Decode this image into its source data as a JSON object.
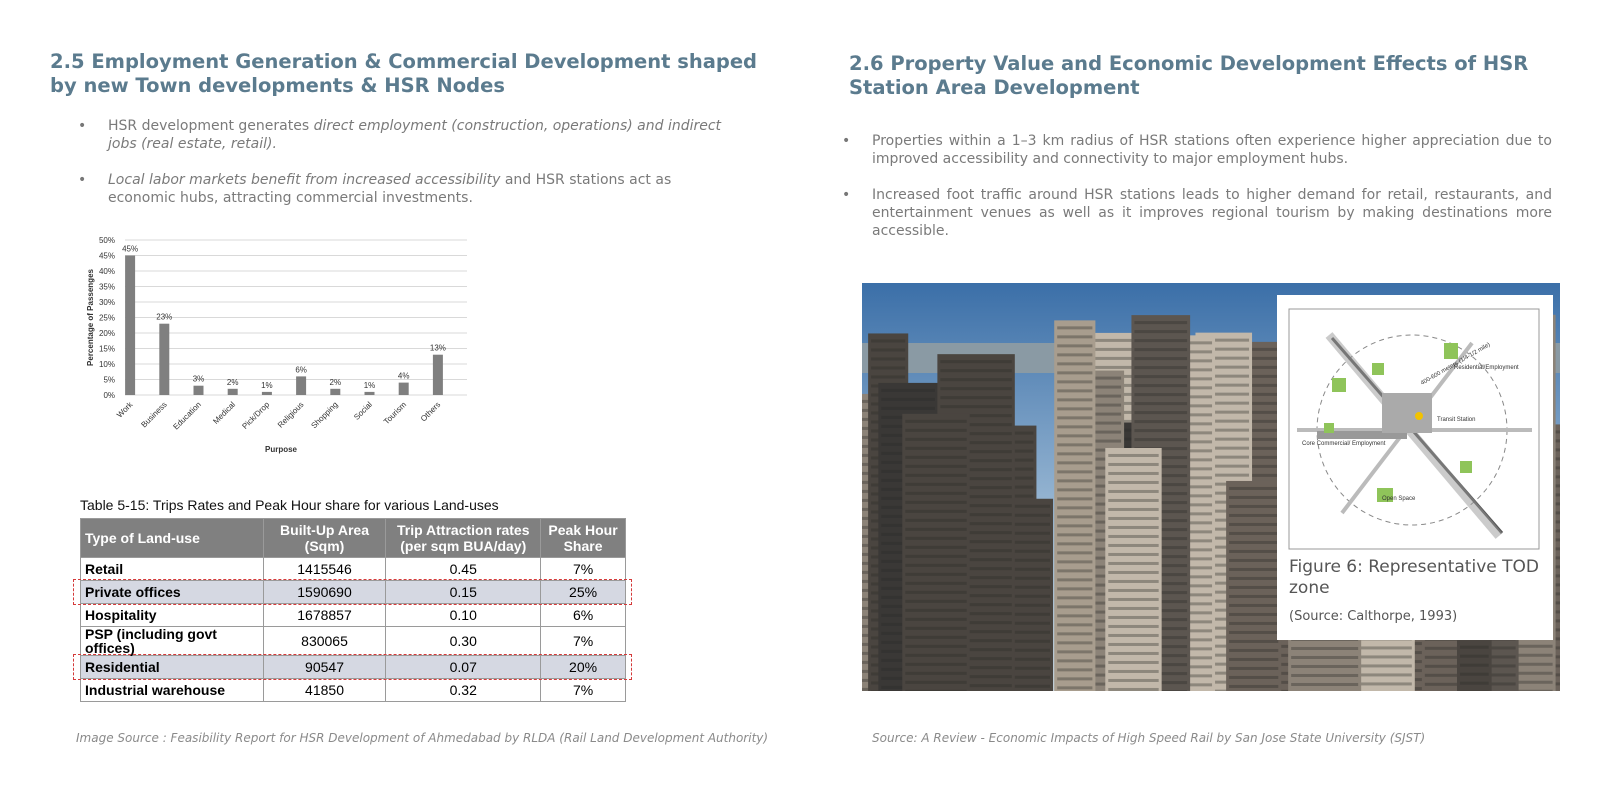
{
  "left": {
    "title": "2.5 Employment Generation & Commercial Development shaped by new Town developments & HSR Nodes",
    "bullets": [
      [
        {
          "text": "HSR development generates "
        },
        {
          "text": "direct employment (construction, operations) and indirect jobs (real estate, retail).",
          "italic": true
        }
      ],
      [
        {
          "text": "Local labor markets benefit from increased accessibility",
          "italic": true
        },
        {
          "text": " and HSR stations act as economic hubs, attracting commercial investments."
        }
      ]
    ],
    "chart": {
      "type": "bar",
      "categories": [
        "Work",
        "Business",
        "Education",
        "Medical",
        "Pick/Drop",
        "Religious",
        "Shopping",
        "Social",
        "Tourism",
        "Others"
      ],
      "values": [
        45,
        23,
        3,
        2,
        1,
        6,
        2,
        1,
        4,
        13
      ],
      "value_labels": [
        "45%",
        "23%",
        "3%",
        "2%",
        "1%",
        "6%",
        "2%",
        "1%",
        "4%",
        "13%"
      ],
      "color": "#7f7f7f",
      "ylim": [
        0,
        50
      ],
      "yticks": [
        {
          "value": 0,
          "label": "0%"
        },
        {
          "value": 5,
          "label": "5%"
        },
        {
          "value": 10,
          "label": "10%"
        },
        {
          "value": 15,
          "label": "15%"
        },
        {
          "value": 20,
          "label": "20%"
        },
        {
          "value": 25,
          "label": "25%"
        },
        {
          "value": 30,
          "label": "30%"
        },
        {
          "value": 35,
          "label": "35%"
        },
        {
          "value": 40,
          "label": "40%"
        },
        {
          "value": 45,
          "label": "45%"
        },
        {
          "value": 50,
          "label": "50%"
        }
      ],
      "grid": true,
      "ylabel": "Percentage of Passenges",
      "xlabel": "Purpose"
    },
    "table": {
      "caption": "Table 5-15: Trips Rates and Peak Hour share for various Land-uses",
      "header": [
        "Type of Land-use",
        "Built-Up Area (Sqm)",
        "Trip Attraction rates (per sqm BUA/day)",
        "Peak Hour Share"
      ],
      "rows": [
        {
          "cells": [
            "Retail",
            "1415546",
            "0.45",
            "7%"
          ]
        },
        {
          "cells": [
            "Private offices",
            "1590690",
            "0.15",
            "25%"
          ],
          "highlighted": true
        },
        {
          "cells": [
            "Hospitality",
            "1678857",
            "0.10",
            "6%"
          ]
        },
        {
          "cells": [
            "PSP (including govt offices)",
            "830065",
            "0.30",
            "7%"
          ]
        },
        {
          "cells": [
            "Residential",
            "90547",
            "0.07",
            "20%"
          ],
          "highlighted": true
        },
        {
          "cells": [
            "Industrial warehouse",
            "41850",
            "0.32",
            "7%"
          ]
        }
      ]
    },
    "source": "Image Source : Feasibility Report for HSR Development of Ahmedabad by RLDA (Rail Land Development Authority)"
  },
  "right": {
    "title": "2.6 Property Value and Economic Development Effects of HSR Station Area Development",
    "bullets": [
      [
        {
          "text": "Properties within a 1–3 km radius of HSR stations often experience higher appreciation due to improved accessibility and connectivity to major employment hubs."
        }
      ],
      [
        {
          "text": "Increased foot traffic around HSR stations leads to higher demand for retail, restaurants, and entertainment venues as well as it improves regional tourism by making destinations more accessible."
        }
      ]
    ],
    "figure": {
      "diagram_labels": [
        "Residential/Employment",
        "400-600 meters (1/4-1/2 mile)",
        "Transit Station",
        "Core Commercial/ Employment",
        "Open Space"
      ],
      "caption": "Figure 6: Representative TOD zone",
      "credit": "(Source: Calthorpe, 1993)"
    },
    "source": "Source: A Review - Economic Impacts of High Speed Rail by San Jose State University (SJST)"
  }
}
